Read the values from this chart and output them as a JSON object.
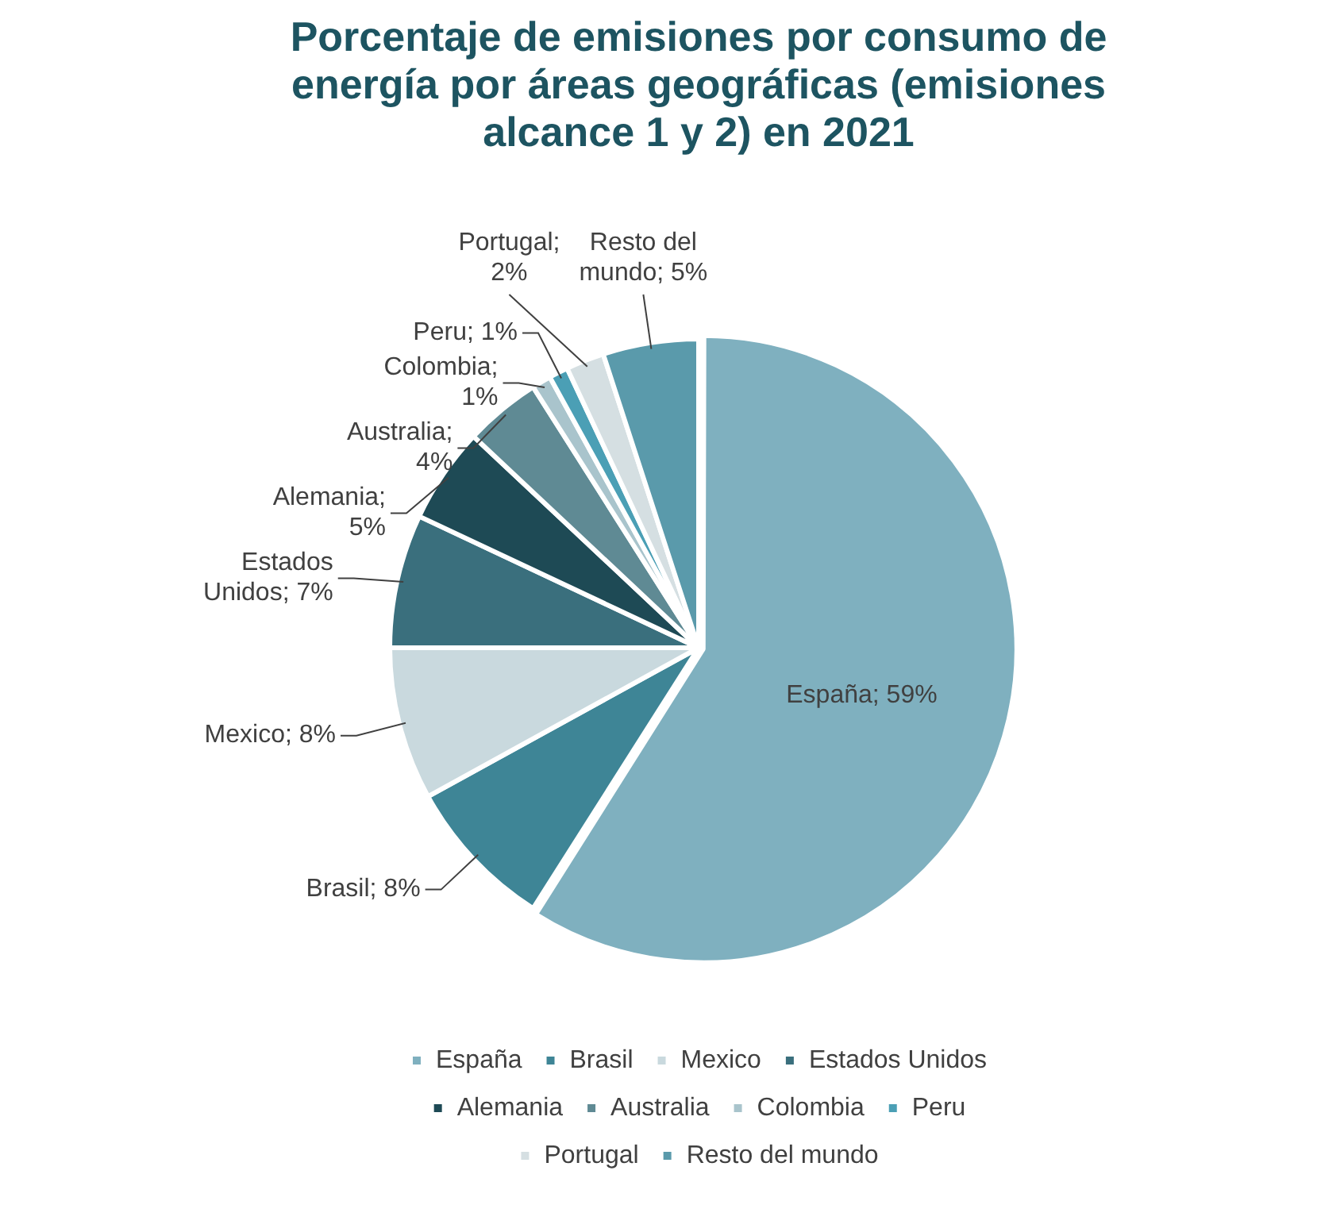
{
  "chart_data": {
    "type": "pie",
    "title": "Porcentaje de emisiones por consumo de energía por áreas geográficas (emisiones alcance 1 y 2) en 2021",
    "categories": [
      "España",
      "Brasil",
      "Mexico",
      "Estados Unidos",
      "Alemania",
      "Australia",
      "Colombia",
      "Peru",
      "Portugal",
      "Resto del mundo"
    ],
    "values": [
      59,
      8,
      8,
      7,
      5,
      4,
      1,
      1,
      2,
      5
    ],
    "value_labels": [
      "España; 59%",
      "Brasil; 8%",
      "Mexico; 8%",
      "Estados Unidos; 7%",
      "Alemania; 5%",
      "Australia; 4%",
      "Colombia; 1%",
      "Peru; 1%",
      "Portugal; 2%",
      "Resto del mundo; 5%"
    ],
    "colors": [
      "#7fb0bf",
      "#3e8596",
      "#c9d9de",
      "#3a6f7d",
      "#1e4a55",
      "#5f8a94",
      "#a9c4cc",
      "#4b9fb5",
      "#d5dfe2",
      "#5a9aab"
    ],
    "legend": "bottom"
  }
}
